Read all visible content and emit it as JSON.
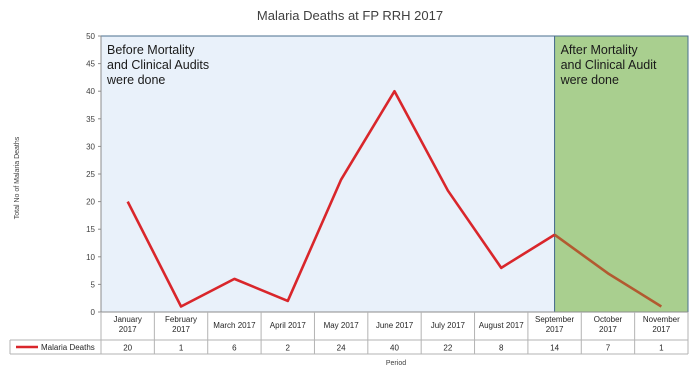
{
  "chart_data": {
    "type": "line",
    "title": "Malaria Deaths at FP RRH 2017",
    "xlabel": "Period",
    "ylabel": "Total No of Malaria Deaths",
    "ylim": [
      0,
      50
    ],
    "yticks": [
      0,
      5,
      10,
      15,
      20,
      25,
      30,
      35,
      40,
      45,
      50
    ],
    "categories": [
      [
        "January",
        "2017"
      ],
      [
        "February",
        "2017"
      ],
      [
        "March 2017"
      ],
      [
        "April 2017"
      ],
      [
        "May 2017"
      ],
      [
        "June 2017"
      ],
      [
        "July 2017"
      ],
      [
        "August 2017"
      ],
      [
        "September",
        "2017"
      ],
      [
        "October",
        "2017"
      ],
      [
        "November",
        "2017"
      ]
    ],
    "series": [
      {
        "name": "Malaria Deaths",
        "values": [
          20,
          1,
          6,
          2,
          24,
          40,
          22,
          8,
          14,
          7,
          1
        ],
        "color": "#d9262b"
      }
    ],
    "data_table": true,
    "grid": false,
    "regions": [
      {
        "lines": [
          "Before Mortality",
          "and Clinical Audits",
          "were done"
        ],
        "from_index": 0,
        "to_index": 8,
        "color": "#e9f1fa",
        "border": "#4a6f8f"
      },
      {
        "lines": [
          "After Mortality",
          "and Clinical Audit",
          "were done"
        ],
        "from_index": 8,
        "to_index": 10,
        "color": "#a9cf8f",
        "border": "#4a6f8f"
      }
    ],
    "late_line_color": "#b25a30"
  }
}
